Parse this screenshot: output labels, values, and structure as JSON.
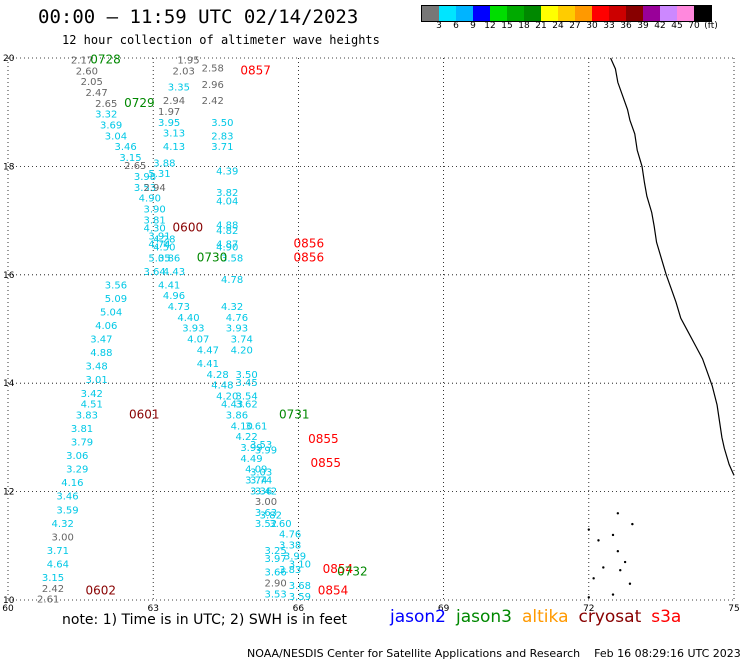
{
  "header": {
    "title": "00:00 – 11:59 UTC 02/14/2023",
    "subtitle": "12 hour collection of altimeter wave heights"
  },
  "colorbar": {
    "colors": [
      "#777777",
      "#00e5ff",
      "#00b4ff",
      "#0000ff",
      "#00dd00",
      "#00aa00",
      "#008800",
      "#ffff00",
      "#ffcc00",
      "#ff9900",
      "#ff0000",
      "#cc0000",
      "#880000",
      "#990099",
      "#cc88ff",
      "#ff88dd",
      "#000000"
    ],
    "labels": [
      "3",
      "6",
      "9",
      "12",
      "15",
      "18",
      "21",
      "24",
      "27",
      "30",
      "33",
      "36",
      "39",
      "42",
      "45",
      "70",
      "(ft)"
    ]
  },
  "map": {
    "lon_range": [
      60,
      75
    ],
    "lat_range": [
      10,
      20
    ],
    "x_ticks": [
      "60",
      "63",
      "66",
      "69",
      "72",
      "75"
    ],
    "y_ticks": [
      "10",
      "12",
      "14",
      "16",
      "18",
      "20"
    ],
    "grid": "dotted"
  },
  "chart_data": {
    "type": "scatter",
    "sat_colors": {
      "jason2": "#0000ff",
      "jason3": "#008800",
      "altika": "#ff9900",
      "cryosat": "#880000",
      "s3a": "#ff0000"
    },
    "value_color": {
      "gray": "#666666",
      "cyan": "#00c8e6"
    },
    "time_labels": [
      {
        "t": "0728",
        "sat": "jason3",
        "lon": 61.7,
        "lat": 19.9
      },
      {
        "t": "0729",
        "sat": "jason3",
        "lon": 62.4,
        "lat": 19.1
      },
      {
        "t": "0857",
        "sat": "s3a",
        "lon": 64.8,
        "lat": 19.7
      },
      {
        "t": "0600",
        "sat": "cryosat",
        "lon": 63.4,
        "lat": 16.8
      },
      {
        "t": "0856",
        "sat": "s3a",
        "lon": 65.9,
        "lat": 16.5
      },
      {
        "t": "0856",
        "sat": "s3a",
        "lon": 65.9,
        "lat": 16.25
      },
      {
        "t": "0730",
        "sat": "jason3",
        "lon": 63.9,
        "lat": 16.25
      },
      {
        "t": "0601",
        "sat": "cryosat",
        "lon": 62.5,
        "lat": 13.35
      },
      {
        "t": "0731",
        "sat": "jason3",
        "lon": 65.6,
        "lat": 13.35
      },
      {
        "t": "0855",
        "sat": "s3a",
        "lon": 66.2,
        "lat": 12.9
      },
      {
        "t": "0855",
        "sat": "s3a",
        "lon": 66.25,
        "lat": 12.45
      },
      {
        "t": "0854",
        "sat": "s3a",
        "lon": 66.5,
        "lat": 10.5
      },
      {
        "t": "0732",
        "sat": "jason3",
        "lon": 66.8,
        "lat": 10.45
      },
      {
        "t": "0854",
        "sat": "s3a",
        "lon": 66.4,
        "lat": 10.1
      },
      {
        "t": "0602",
        "sat": "cryosat",
        "lon": 61.6,
        "lat": 10.1
      }
    ],
    "values": [
      {
        "v": "2.17",
        "c": "gray",
        "lon": 61.3,
        "lat": 19.9
      },
      {
        "v": "2.60",
        "c": "gray",
        "lon": 61.4,
        "lat": 19.7
      },
      {
        "v": "2.05",
        "c": "gray",
        "lon": 61.5,
        "lat": 19.5
      },
      {
        "v": "2.47",
        "c": "gray",
        "lon": 61.6,
        "lat": 19.3
      },
      {
        "v": "2.65",
        "c": "gray",
        "lon": 61.8,
        "lat": 19.1
      },
      {
        "v": "3.32",
        "c": "cyan",
        "lon": 61.8,
        "lat": 18.9
      },
      {
        "v": "3.69",
        "c": "cyan",
        "lon": 61.9,
        "lat": 18.7
      },
      {
        "v": "3.04",
        "c": "cyan",
        "lon": 62.0,
        "lat": 18.5
      },
      {
        "v": "3.46",
        "c": "cyan",
        "lon": 62.2,
        "lat": 18.3
      },
      {
        "v": "3.15",
        "c": "cyan",
        "lon": 62.3,
        "lat": 18.1
      },
      {
        "v": "2.65",
        "c": "gray",
        "lon": 62.4,
        "lat": 17.95
      },
      {
        "v": "3.98",
        "c": "cyan",
        "lon": 62.6,
        "lat": 17.75
      },
      {
        "v": "3.53",
        "c": "cyan",
        "lon": 62.6,
        "lat": 17.55
      },
      {
        "v": "4.90",
        "c": "cyan",
        "lon": 62.7,
        "lat": 17.35
      },
      {
        "v": "3.90",
        "c": "cyan",
        "lon": 62.8,
        "lat": 17.15
      },
      {
        "v": "3.81",
        "c": "cyan",
        "lon": 62.8,
        "lat": 16.95
      },
      {
        "v": "4.30",
        "c": "cyan",
        "lon": 62.8,
        "lat": 16.8
      },
      {
        "v": "3.91",
        "c": "cyan",
        "lon": 62.9,
        "lat": 16.65
      },
      {
        "v": "4.74",
        "c": "cyan",
        "lon": 62.9,
        "lat": 16.5
      },
      {
        "v": "5.05",
        "c": "cyan",
        "lon": 62.9,
        "lat": 16.25
      },
      {
        "v": "3.64",
        "c": "cyan",
        "lon": 62.8,
        "lat": 16.0
      },
      {
        "v": "3.56",
        "c": "cyan",
        "lon": 62.0,
        "lat": 15.75
      },
      {
        "v": "5.09",
        "c": "cyan",
        "lon": 62.0,
        "lat": 15.5
      },
      {
        "v": "5.04",
        "c": "cyan",
        "lon": 61.9,
        "lat": 15.25
      },
      {
        "v": "4.06",
        "c": "cyan",
        "lon": 61.8,
        "lat": 15.0
      },
      {
        "v": "3.47",
        "c": "cyan",
        "lon": 61.7,
        "lat": 14.75
      },
      {
        "v": "4.88",
        "c": "cyan",
        "lon": 61.7,
        "lat": 14.5
      },
      {
        "v": "3.48",
        "c": "cyan",
        "lon": 61.6,
        "lat": 14.25
      },
      {
        "v": "3.01",
        "c": "cyan",
        "lon": 61.6,
        "lat": 14.0
      },
      {
        "v": "3.42",
        "c": "cyan",
        "lon": 61.5,
        "lat": 13.75
      },
      {
        "v": "4.51",
        "c": "cyan",
        "lon": 61.5,
        "lat": 13.55
      },
      {
        "v": "3.83",
        "c": "cyan",
        "lon": 61.4,
        "lat": 13.35
      },
      {
        "v": "3.81",
        "c": "cyan",
        "lon": 61.3,
        "lat": 13.1
      },
      {
        "v": "3.79",
        "c": "cyan",
        "lon": 61.3,
        "lat": 12.85
      },
      {
        "v": "3.06",
        "c": "cyan",
        "lon": 61.2,
        "lat": 12.6
      },
      {
        "v": "3.29",
        "c": "cyan",
        "lon": 61.2,
        "lat": 12.35
      },
      {
        "v": "4.16",
        "c": "cyan",
        "lon": 61.1,
        "lat": 12.1
      },
      {
        "v": "3.46",
        "c": "cyan",
        "lon": 61.0,
        "lat": 11.85
      },
      {
        "v": "3.59",
        "c": "cyan",
        "lon": 61.0,
        "lat": 11.6
      },
      {
        "v": "4.32",
        "c": "cyan",
        "lon": 60.9,
        "lat": 11.35
      },
      {
        "v": "3.00",
        "c": "gray",
        "lon": 60.9,
        "lat": 11.1
      },
      {
        "v": "3.71",
        "c": "cyan",
        "lon": 60.8,
        "lat": 10.85
      },
      {
        "v": "4.64",
        "c": "cyan",
        "lon": 60.8,
        "lat": 10.6
      },
      {
        "v": "3.15",
        "c": "cyan",
        "lon": 60.7,
        "lat": 10.35
      },
      {
        "v": "2.42",
        "c": "gray",
        "lon": 60.7,
        "lat": 10.15
      },
      {
        "v": "2.61",
        "c": "gray",
        "lon": 60.6,
        "lat": 9.95
      },
      {
        "v": "1.95",
        "c": "gray",
        "lon": 63.5,
        "lat": 19.9
      },
      {
        "v": "2.03",
        "c": "gray",
        "lon": 63.4,
        "lat": 19.7
      },
      {
        "v": "2.58",
        "c": "gray",
        "lon": 64.0,
        "lat": 19.75
      },
      {
        "v": "3.35",
        "c": "cyan",
        "lon": 63.3,
        "lat": 19.4
      },
      {
        "v": "2.96",
        "c": "gray",
        "lon": 64.0,
        "lat": 19.45
      },
      {
        "v": "2.94",
        "c": "gray",
        "lon": 63.2,
        "lat": 19.15
      },
      {
        "v": "2.42",
        "c": "gray",
        "lon": 64.0,
        "lat": 19.15
      },
      {
        "v": "1.97",
        "c": "gray",
        "lon": 63.1,
        "lat": 18.95
      },
      {
        "v": "3.95",
        "c": "cyan",
        "lon": 63.1,
        "lat": 18.75
      },
      {
        "v": "3.50",
        "c": "cyan",
        "lon": 64.2,
        "lat": 18.75
      },
      {
        "v": "3.13",
        "c": "cyan",
        "lon": 63.2,
        "lat": 18.55
      },
      {
        "v": "2.83",
        "c": "cyan",
        "lon": 64.2,
        "lat": 18.5
      },
      {
        "v": "4.13",
        "c": "cyan",
        "lon": 63.2,
        "lat": 18.3
      },
      {
        "v": "3.71",
        "c": "cyan",
        "lon": 64.2,
        "lat": 18.3
      },
      {
        "v": "3.88",
        "c": "cyan",
        "lon": 63.0,
        "lat": 18.0
      },
      {
        "v": "5.31",
        "c": "cyan",
        "lon": 62.9,
        "lat": 17.8
      },
      {
        "v": "4.39",
        "c": "cyan",
        "lon": 64.3,
        "lat": 17.85
      },
      {
        "v": "2.94",
        "c": "gray",
        "lon": 62.8,
        "lat": 17.55
      },
      {
        "v": "3.82",
        "c": "cyan",
        "lon": 64.3,
        "lat": 17.45
      },
      {
        "v": "4.04",
        "c": "cyan",
        "lon": 64.3,
        "lat": 17.3
      },
      {
        "v": "4.88",
        "c": "cyan",
        "lon": 64.3,
        "lat": 16.85
      },
      {
        "v": "4.82",
        "c": "cyan",
        "lon": 64.3,
        "lat": 16.75
      },
      {
        "v": "4.28",
        "c": "cyan",
        "lon": 63.0,
        "lat": 16.6
      },
      {
        "v": "4.50",
        "c": "cyan",
        "lon": 63.0,
        "lat": 16.45
      },
      {
        "v": "4.87",
        "c": "cyan",
        "lon": 64.3,
        "lat": 16.5
      },
      {
        "v": "4.90",
        "c": "cyan",
        "lon": 64.3,
        "lat": 16.45
      },
      {
        "v": "3.86",
        "c": "cyan",
        "lon": 63.1,
        "lat": 16.25
      },
      {
        "v": "3.58",
        "c": "cyan",
        "lon": 64.4,
        "lat": 16.25
      },
      {
        "v": "4.43",
        "c": "cyan",
        "lon": 63.2,
        "lat": 16.0
      },
      {
        "v": "4.41",
        "c": "cyan",
        "lon": 63.1,
        "lat": 15.75
      },
      {
        "v": "4.78",
        "c": "cyan",
        "lon": 64.4,
        "lat": 15.85
      },
      {
        "v": "4.96",
        "c": "cyan",
        "lon": 63.2,
        "lat": 15.55
      },
      {
        "v": "4.73",
        "c": "cyan",
        "lon": 63.3,
        "lat": 15.35
      },
      {
        "v": "4.32",
        "c": "cyan",
        "lon": 64.4,
        "lat": 15.35
      },
      {
        "v": "4.40",
        "c": "cyan",
        "lon": 63.5,
        "lat": 15.15
      },
      {
        "v": "4.76",
        "c": "cyan",
        "lon": 64.5,
        "lat": 15.15
      },
      {
        "v": "3.93",
        "c": "cyan",
        "lon": 63.6,
        "lat": 14.95
      },
      {
        "v": "3.93",
        "c": "cyan",
        "lon": 64.5,
        "lat": 14.95
      },
      {
        "v": "4.07",
        "c": "cyan",
        "lon": 63.7,
        "lat": 14.75
      },
      {
        "v": "3.74",
        "c": "cyan",
        "lon": 64.6,
        "lat": 14.75
      },
      {
        "v": "4.47",
        "c": "cyan",
        "lon": 63.9,
        "lat": 14.55
      },
      {
        "v": "4.20",
        "c": "cyan",
        "lon": 64.6,
        "lat": 14.55
      },
      {
        "v": "4.41",
        "c": "cyan",
        "lon": 63.9,
        "lat": 14.3
      },
      {
        "v": "4.28",
        "c": "cyan",
        "lon": 64.1,
        "lat": 14.1
      },
      {
        "v": "3.50",
        "c": "cyan",
        "lon": 64.7,
        "lat": 14.1
      },
      {
        "v": "4.48",
        "c": "cyan",
        "lon": 64.2,
        "lat": 13.9
      },
      {
        "v": "3.45",
        "c": "cyan",
        "lon": 64.7,
        "lat": 13.95
      },
      {
        "v": "4.20",
        "c": "cyan",
        "lon": 64.3,
        "lat": 13.7
      },
      {
        "v": "3.54",
        "c": "cyan",
        "lon": 64.7,
        "lat": 13.7
      },
      {
        "v": "4.43",
        "c": "cyan",
        "lon": 64.4,
        "lat": 13.55
      },
      {
        "v": "3.62",
        "c": "cyan",
        "lon": 64.7,
        "lat": 13.55
      },
      {
        "v": "3.86",
        "c": "cyan",
        "lon": 64.5,
        "lat": 13.35
      },
      {
        "v": "4.10",
        "c": "cyan",
        "lon": 64.6,
        "lat": 13.15
      },
      {
        "v": "3.61",
        "c": "cyan",
        "lon": 64.9,
        "lat": 13.15
      },
      {
        "v": "4.22",
        "c": "cyan",
        "lon": 64.7,
        "lat": 12.95
      },
      {
        "v": "3.99",
        "c": "cyan",
        "lon": 64.8,
        "lat": 12.75
      },
      {
        "v": "3.53",
        "c": "cyan",
        "lon": 65.0,
        "lat": 12.8
      },
      {
        "v": "3.99",
        "c": "cyan",
        "lon": 65.1,
        "lat": 12.7
      },
      {
        "v": "4.49",
        "c": "cyan",
        "lon": 64.8,
        "lat": 12.55
      },
      {
        "v": "4.09",
        "c": "cyan",
        "lon": 64.9,
        "lat": 12.35
      },
      {
        "v": "3.03",
        "c": "cyan",
        "lon": 65.0,
        "lat": 12.3
      },
      {
        "v": "3.74",
        "c": "cyan",
        "lon": 64.9,
        "lat": 12.15
      },
      {
        "v": "3.74",
        "c": "cyan",
        "lon": 65.0,
        "lat": 12.15
      },
      {
        "v": "3.36",
        "c": "cyan",
        "lon": 65.0,
        "lat": 11.95
      },
      {
        "v": "3.42",
        "c": "cyan",
        "lon": 65.1,
        "lat": 11.95
      },
      {
        "v": "3.00",
        "c": "gray",
        "lon": 65.1,
        "lat": 11.75
      },
      {
        "v": "3.63",
        "c": "cyan",
        "lon": 65.1,
        "lat": 11.55
      },
      {
        "v": "3.82",
        "c": "cyan",
        "lon": 65.2,
        "lat": 11.5
      },
      {
        "v": "3.52",
        "c": "cyan",
        "lon": 65.1,
        "lat": 11.35
      },
      {
        "v": "3.60",
        "c": "cyan",
        "lon": 65.4,
        "lat": 11.35
      },
      {
        "v": "4.76",
        "c": "cyan",
        "lon": 65.6,
        "lat": 11.15
      },
      {
        "v": "3.38",
        "c": "cyan",
        "lon": 65.6,
        "lat": 10.95
      },
      {
        "v": "3.25",
        "c": "cyan",
        "lon": 65.3,
        "lat": 10.85
      },
      {
        "v": "3.99",
        "c": "cyan",
        "lon": 65.7,
        "lat": 10.75
      },
      {
        "v": "3.97",
        "c": "cyan",
        "lon": 65.3,
        "lat": 10.7
      },
      {
        "v": "3.10",
        "c": "cyan",
        "lon": 65.8,
        "lat": 10.6
      },
      {
        "v": "3.66",
        "c": "cyan",
        "lon": 65.3,
        "lat": 10.45
      },
      {
        "v": "3.83",
        "c": "cyan",
        "lon": 65.6,
        "lat": 10.5
      },
      {
        "v": "2.90",
        "c": "gray",
        "lon": 65.3,
        "lat": 10.25
      },
      {
        "v": "3.68",
        "c": "cyan",
        "lon": 65.8,
        "lat": 10.2
      },
      {
        "v": "3.53",
        "c": "cyan",
        "lon": 65.3,
        "lat": 10.05
      },
      {
        "v": "3.59",
        "c": "cyan",
        "lon": 65.8,
        "lat": 10.0
      }
    ]
  },
  "legend": [
    {
      "name": "jason2",
      "color": "#0000ff"
    },
    {
      "name": "jason3",
      "color": "#008800"
    },
    {
      "name": "altika",
      "color": "#ff9900"
    },
    {
      "name": "cryosat",
      "color": "#880000"
    },
    {
      "name": "s3a",
      "color": "#ff0000"
    }
  ],
  "footer": {
    "note": "note: 1) Time is in UTC; 2) SWH is in feet",
    "credit": "NOAA/NESDIS Center for Satellite Applications and Research",
    "timestamp": "Feb 16 08:29:16 UTC 2023"
  }
}
